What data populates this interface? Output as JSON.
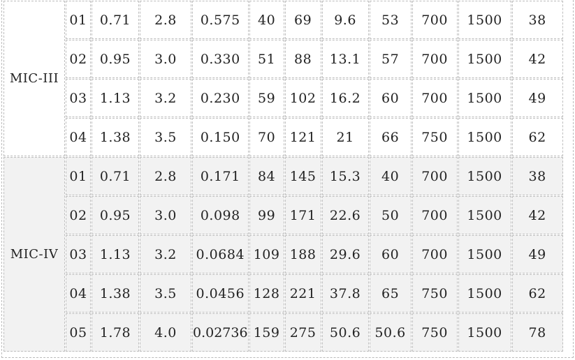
{
  "table": {
    "groups": [
      {
        "label": "MIC-III",
        "rows": [
          [
            "01",
            "0.71",
            "2.8",
            "0.575",
            "40",
            "69",
            "9.6",
            "53",
            "700",
            "1500",
            "38"
          ],
          [
            "02",
            "0.95",
            "3.0",
            "0.330",
            "51",
            "88",
            "13.1",
            "57",
            "700",
            "1500",
            "42"
          ],
          [
            "03",
            "1.13",
            "3.2",
            "0.230",
            "59",
            "102",
            "16.2",
            "60",
            "700",
            "1500",
            "49"
          ],
          [
            "04",
            "1.38",
            "3.5",
            "0.150",
            "70",
            "121",
            "21",
            "66",
            "750",
            "1500",
            "62"
          ]
        ]
      },
      {
        "label": "MIC-IV",
        "rows": [
          [
            "01",
            "0.71",
            "2.8",
            "0.171",
            "84",
            "145",
            "15.3",
            "40",
            "700",
            "1500",
            "38"
          ],
          [
            "02",
            "0.95",
            "3.0",
            "0.098",
            "99",
            "171",
            "22.6",
            "50",
            "700",
            "1500",
            "42"
          ],
          [
            "03",
            "1.13",
            "3.2",
            "0.0684",
            "109",
            "188",
            "29.6",
            "60",
            "700",
            "1500",
            "49"
          ],
          [
            "04",
            "1.38",
            "3.5",
            "0.0456",
            "128",
            "221",
            "37.8",
            "65",
            "750",
            "1500",
            "62"
          ],
          [
            "05",
            "1.78",
            "4.0",
            "0.02736",
            "159",
            "275",
            "50.6",
            "50.6",
            "750",
            "1500",
            "78"
          ]
        ]
      }
    ]
  },
  "colors": {
    "group1_bg": "#ffffff",
    "group2_bg": "#f2f2f2",
    "border": "#bdbdbd"
  }
}
